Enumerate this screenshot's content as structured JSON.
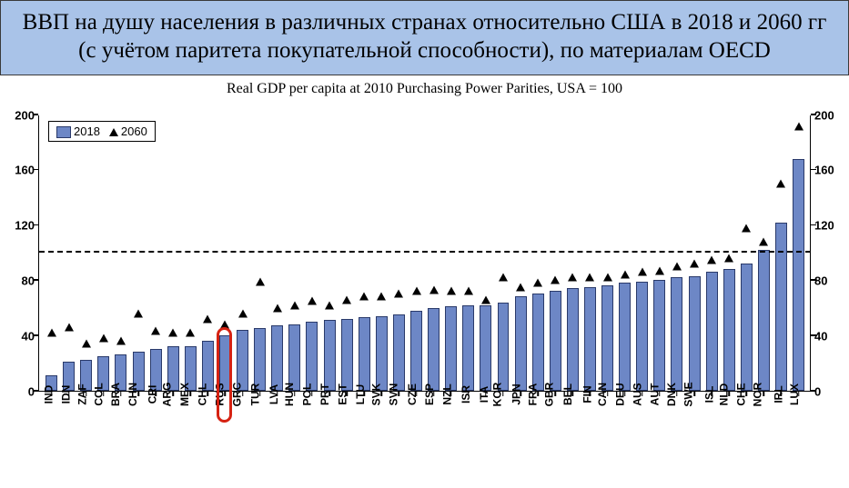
{
  "header": {
    "title": "ВВП на душу населения в различных странах относительно США в 2018 и 2060 гг (с учётом паритета покупательной способности), по материалам OECD",
    "background_color": "#a9c3e8",
    "font_size": 25
  },
  "chart": {
    "subtitle": "Real GDP per capita at 2010 Purchasing Power Parities, USA = 100",
    "type": "bar_with_markers",
    "ylim": [
      0,
      200
    ],
    "ytick_step": 40,
    "yticks": [
      0,
      40,
      80,
      120,
      160,
      200
    ],
    "reference_line": 100,
    "bar_color": "#6d87c6",
    "bar_border_color": "#2a3a6a",
    "marker_color": "#000000",
    "ref_line_color": "#000000",
    "axis_color": "#000000",
    "background_color": "#ffffff",
    "legend": {
      "bar_label": "2018",
      "marker_label": "2060",
      "border_color": "#000000"
    },
    "highlight": {
      "index": 10,
      "color": "#d62212"
    },
    "categories": [
      "IND",
      "IDN",
      "ZAF",
      "COL",
      "BRA",
      "CHN",
      "CRI",
      "ARG",
      "MEX",
      "CHL",
      "RUS",
      "GRC",
      "TUR",
      "LVA",
      "HUN",
      "POL",
      "PRT",
      "EST",
      "LTU",
      "SVK",
      "SVN",
      "CZE",
      "ESP",
      "NZL",
      "ISR",
      "ITA",
      "KOR",
      "JPN",
      "FRA",
      "GBR",
      "BEL",
      "FIN",
      "CAN",
      "DEU",
      "AUS",
      "AUT",
      "DNK",
      "SWE",
      "ISL",
      "NLD",
      "CHE",
      "NOR",
      "IRL",
      "LUX"
    ],
    "bar_values_2018": [
      11,
      21,
      22,
      25,
      26,
      28,
      30,
      32,
      32,
      36,
      40,
      44,
      45,
      47,
      48,
      50,
      51,
      52,
      53,
      54,
      55,
      58,
      60,
      61,
      62,
      62,
      64,
      68,
      70,
      72,
      74,
      75,
      76,
      78,
      79,
      80,
      82,
      83,
      86,
      88,
      92,
      102,
      122,
      168
    ],
    "marker_values_2060": [
      42,
      46,
      34,
      38,
      36,
      56,
      43,
      42,
      42,
      52,
      48,
      56,
      79,
      60,
      62,
      65,
      62,
      66,
      68,
      68,
      70,
      72,
      73,
      72,
      72,
      66,
      82,
      75,
      78,
      80,
      82,
      82,
      82,
      84,
      86,
      87,
      90,
      92,
      95,
      96,
      118,
      108,
      150,
      192
    ]
  }
}
